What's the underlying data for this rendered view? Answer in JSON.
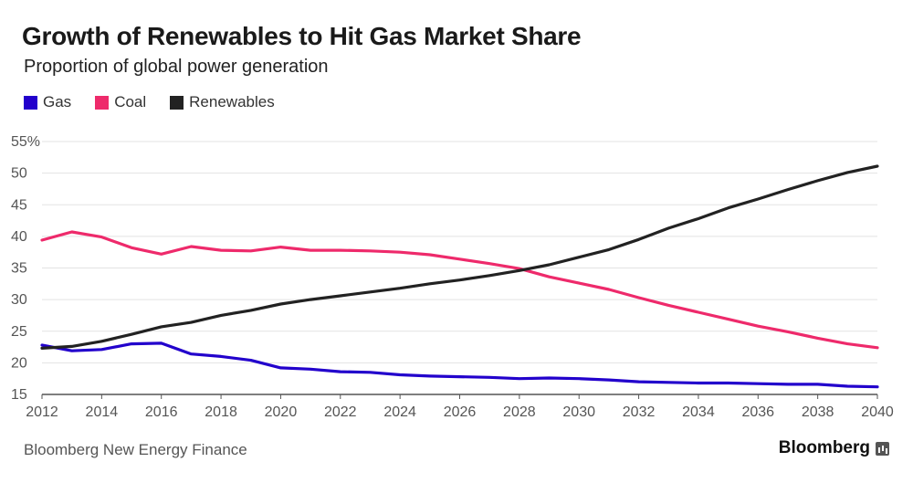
{
  "title": "Growth of Renewables to Hit Gas Market Share",
  "subtitle": "Proportion of global power generation",
  "source": "Bloomberg New Energy Finance",
  "brand": "Bloomberg",
  "legend": [
    {
      "label": "Gas",
      "color": "#2200cc"
    },
    {
      "label": "Coal",
      "color": "#ee2a6b"
    },
    {
      "label": "Renewables",
      "color": "#222222"
    }
  ],
  "chart_data": {
    "type": "line",
    "title": "Growth of Renewables to Hit Gas Market Share",
    "subtitle": "Proportion of global power generation",
    "xlim": [
      2012,
      2040
    ],
    "ylim": [
      15,
      55
    ],
    "xticks": [
      2012,
      2014,
      2016,
      2018,
      2020,
      2022,
      2024,
      2026,
      2028,
      2030,
      2032,
      2034,
      2036,
      2038,
      2040
    ],
    "yticks": [
      15,
      20,
      25,
      30,
      35,
      40,
      45,
      50,
      55
    ],
    "ytick_labels": [
      "15",
      "20",
      "25",
      "30",
      "35",
      "40",
      "45",
      "50",
      "55%"
    ],
    "grid": "horizontal",
    "legend_position": "top-left",
    "x": [
      2012,
      2013,
      2014,
      2015,
      2016,
      2017,
      2018,
      2019,
      2020,
      2021,
      2022,
      2023,
      2024,
      2025,
      2026,
      2027,
      2028,
      2029,
      2030,
      2031,
      2032,
      2033,
      2034,
      2035,
      2036,
      2037,
      2038,
      2039,
      2040
    ],
    "series": [
      {
        "name": "Gas",
        "color": "#2200cc",
        "values": [
          22.8,
          21.9,
          22.1,
          23.0,
          23.1,
          21.4,
          21.0,
          20.4,
          19.2,
          19.0,
          18.6,
          18.5,
          18.1,
          17.9,
          17.8,
          17.7,
          17.5,
          17.6,
          17.5,
          17.3,
          17.0,
          16.9,
          16.8,
          16.8,
          16.7,
          16.6,
          16.6,
          16.3,
          16.2
        ]
      },
      {
        "name": "Coal",
        "color": "#ee2a6b",
        "values": [
          39.4,
          40.7,
          39.9,
          38.2,
          37.2,
          38.4,
          37.8,
          37.7,
          38.3,
          37.8,
          37.8,
          37.7,
          37.5,
          37.1,
          36.4,
          35.7,
          34.9,
          33.6,
          32.6,
          31.6,
          30.3,
          29.1,
          28.0,
          26.9,
          25.8,
          24.9,
          23.9,
          23.0,
          22.4
        ]
      },
      {
        "name": "Renewables",
        "color": "#222222",
        "values": [
          22.3,
          22.6,
          23.4,
          24.5,
          25.7,
          26.4,
          27.5,
          28.3,
          29.3,
          30.0,
          30.6,
          31.2,
          31.8,
          32.5,
          33.1,
          33.8,
          34.6,
          35.5,
          36.7,
          37.9,
          39.5,
          41.3,
          42.8,
          44.5,
          45.9,
          47.4,
          48.8,
          50.1,
          51.1
        ]
      }
    ]
  }
}
